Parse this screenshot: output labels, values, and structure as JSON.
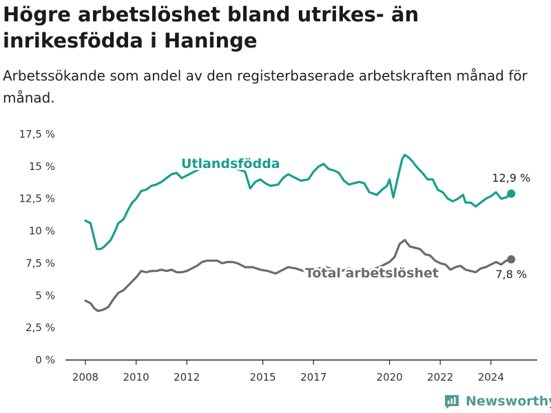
{
  "header": {
    "title": "Högre arbetslöshet bland utrikes- än inrikesfödda i Haninge",
    "subtitle": "Arbetssökande som andel av den registerbaserade arbetskraften månad för månad."
  },
  "brand": {
    "name": "Newsworthy"
  },
  "colors": {
    "foreign": "#179e8f",
    "total": "#6b6b6b",
    "axis": "#222222",
    "brand": "#4f9a92"
  },
  "chart_data": {
    "type": "line",
    "y_tick_labels": [
      "0 %",
      "2,5 %",
      "5 %",
      "7,5 %",
      "10 %",
      "12,5 %",
      "15 %",
      "17,5 %"
    ],
    "y_ticks": [
      0,
      2.5,
      5,
      7.5,
      10,
      12.5,
      15,
      17.5
    ],
    "ylim": [
      0,
      17.5
    ],
    "x_tick_labels": [
      "2008",
      "2010",
      "2012",
      "2015",
      "2017",
      "2020",
      "2022",
      "2024"
    ],
    "x_ticks": [
      2008,
      2010,
      2012,
      2015,
      2017,
      2020,
      2022,
      2024
    ],
    "xlim": [
      2008,
      2025
    ],
    "series": [
      {
        "name": "Utlandsfödda",
        "color": "#179e8f",
        "end_label": "12,9 %",
        "points": [
          [
            2008.0,
            10.8
          ],
          [
            2008.2,
            10.6
          ],
          [
            2008.35,
            9.4
          ],
          [
            2008.45,
            8.6
          ],
          [
            2008.6,
            8.6
          ],
          [
            2008.75,
            8.8
          ],
          [
            2009.0,
            9.3
          ],
          [
            2009.15,
            9.9
          ],
          [
            2009.3,
            10.6
          ],
          [
            2009.5,
            10.9
          ],
          [
            2009.7,
            11.7
          ],
          [
            2009.85,
            12.2
          ],
          [
            2010.0,
            12.5
          ],
          [
            2010.2,
            13.1
          ],
          [
            2010.4,
            13.2
          ],
          [
            2010.6,
            13.5
          ],
          [
            2010.8,
            13.6
          ],
          [
            2011.0,
            13.8
          ],
          [
            2011.2,
            14.1
          ],
          [
            2011.4,
            14.4
          ],
          [
            2011.6,
            14.5
          ],
          [
            2011.8,
            14.1
          ],
          [
            2012.0,
            14.3
          ],
          [
            2012.2,
            14.5
          ],
          [
            2012.5,
            14.8
          ],
          [
            2012.8,
            14.9
          ],
          [
            2013.2,
            15.0
          ],
          [
            2013.6,
            15.0
          ],
          [
            2014.0,
            14.8
          ],
          [
            2014.3,
            14.6
          ],
          [
            2014.5,
            13.3
          ],
          [
            2014.7,
            13.8
          ],
          [
            2014.9,
            14.0
          ],
          [
            2015.1,
            13.7
          ],
          [
            2015.3,
            13.5
          ],
          [
            2015.6,
            13.6
          ],
          [
            2015.8,
            14.1
          ],
          [
            2016.0,
            14.4
          ],
          [
            2016.2,
            14.2
          ],
          [
            2016.5,
            13.9
          ],
          [
            2016.8,
            14.0
          ],
          [
            2017.0,
            14.6
          ],
          [
            2017.2,
            15.0
          ],
          [
            2017.4,
            15.2
          ],
          [
            2017.6,
            14.8
          ],
          [
            2017.8,
            14.7
          ],
          [
            2018.0,
            14.5
          ],
          [
            2018.2,
            13.9
          ],
          [
            2018.4,
            13.6
          ],
          [
            2018.6,
            13.7
          ],
          [
            2018.8,
            13.8
          ],
          [
            2019.0,
            13.7
          ],
          [
            2019.2,
            13.0
          ],
          [
            2019.5,
            12.8
          ],
          [
            2019.7,
            13.2
          ],
          [
            2019.9,
            13.5
          ],
          [
            2020.0,
            14.0
          ],
          [
            2020.15,
            12.6
          ],
          [
            2020.3,
            13.9
          ],
          [
            2020.5,
            15.6
          ],
          [
            2020.6,
            15.9
          ],
          [
            2020.75,
            15.7
          ],
          [
            2020.9,
            15.4
          ],
          [
            2021.1,
            14.9
          ],
          [
            2021.3,
            14.5
          ],
          [
            2021.5,
            14.0
          ],
          [
            2021.7,
            14.0
          ],
          [
            2021.9,
            13.2
          ],
          [
            2022.1,
            13.0
          ],
          [
            2022.3,
            12.5
          ],
          [
            2022.5,
            12.3
          ],
          [
            2022.7,
            12.5
          ],
          [
            2022.9,
            12.8
          ],
          [
            2023.0,
            12.2
          ],
          [
            2023.2,
            12.2
          ],
          [
            2023.4,
            11.9
          ],
          [
            2023.6,
            12.2
          ],
          [
            2023.8,
            12.5
          ],
          [
            2024.0,
            12.7
          ],
          [
            2024.2,
            13.0
          ],
          [
            2024.4,
            12.5
          ],
          [
            2024.6,
            12.6
          ],
          [
            2024.8,
            12.9
          ]
        ]
      },
      {
        "name": "Total arbetslöshet",
        "color": "#6b6b6b",
        "end_label": "7,8 %",
        "points": [
          [
            2008.0,
            4.6
          ],
          [
            2008.2,
            4.4
          ],
          [
            2008.35,
            4.0
          ],
          [
            2008.5,
            3.8
          ],
          [
            2008.7,
            3.9
          ],
          [
            2008.9,
            4.1
          ],
          [
            2009.1,
            4.7
          ],
          [
            2009.3,
            5.2
          ],
          [
            2009.5,
            5.4
          ],
          [
            2009.7,
            5.8
          ],
          [
            2009.9,
            6.2
          ],
          [
            2010.0,
            6.4
          ],
          [
            2010.2,
            6.9
          ],
          [
            2010.4,
            6.8
          ],
          [
            2010.6,
            6.9
          ],
          [
            2010.8,
            6.9
          ],
          [
            2011.0,
            7.0
          ],
          [
            2011.2,
            6.9
          ],
          [
            2011.4,
            7.0
          ],
          [
            2011.6,
            6.8
          ],
          [
            2011.8,
            6.8
          ],
          [
            2012.0,
            6.9
          ],
          [
            2012.2,
            7.1
          ],
          [
            2012.4,
            7.3
          ],
          [
            2012.6,
            7.6
          ],
          [
            2012.8,
            7.7
          ],
          [
            2013.0,
            7.7
          ],
          [
            2013.2,
            7.7
          ],
          [
            2013.4,
            7.5
          ],
          [
            2013.6,
            7.6
          ],
          [
            2013.8,
            7.6
          ],
          [
            2014.0,
            7.5
          ],
          [
            2014.3,
            7.2
          ],
          [
            2014.6,
            7.2
          ],
          [
            2014.9,
            7.0
          ],
          [
            2015.2,
            6.9
          ],
          [
            2015.5,
            6.7
          ],
          [
            2015.8,
            7.0
          ],
          [
            2016.0,
            7.2
          ],
          [
            2016.3,
            7.1
          ],
          [
            2016.6,
            6.9
          ],
          [
            2016.9,
            6.9
          ],
          [
            2017.2,
            7.1
          ],
          [
            2017.5,
            7.2
          ],
          [
            2017.8,
            7.0
          ],
          [
            2018.1,
            6.9
          ],
          [
            2018.4,
            7.1
          ],
          [
            2018.7,
            6.9
          ],
          [
            2019.0,
            6.9
          ],
          [
            2019.3,
            7.0
          ],
          [
            2019.6,
            7.2
          ],
          [
            2019.8,
            7.4
          ],
          [
            2020.0,
            7.6
          ],
          [
            2020.2,
            8.0
          ],
          [
            2020.4,
            9.0
          ],
          [
            2020.6,
            9.3
          ],
          [
            2020.8,
            8.8
          ],
          [
            2021.0,
            8.7
          ],
          [
            2021.2,
            8.6
          ],
          [
            2021.4,
            8.2
          ],
          [
            2021.6,
            8.1
          ],
          [
            2021.8,
            7.7
          ],
          [
            2022.0,
            7.5
          ],
          [
            2022.2,
            7.4
          ],
          [
            2022.4,
            7.0
          ],
          [
            2022.6,
            7.2
          ],
          [
            2022.8,
            7.3
          ],
          [
            2023.0,
            7.0
          ],
          [
            2023.2,
            6.9
          ],
          [
            2023.4,
            6.8
          ],
          [
            2023.6,
            7.1
          ],
          [
            2023.8,
            7.2
          ],
          [
            2024.0,
            7.4
          ],
          [
            2024.2,
            7.6
          ],
          [
            2024.4,
            7.4
          ],
          [
            2024.6,
            7.7
          ],
          [
            2024.8,
            7.8
          ]
        ]
      }
    ]
  }
}
